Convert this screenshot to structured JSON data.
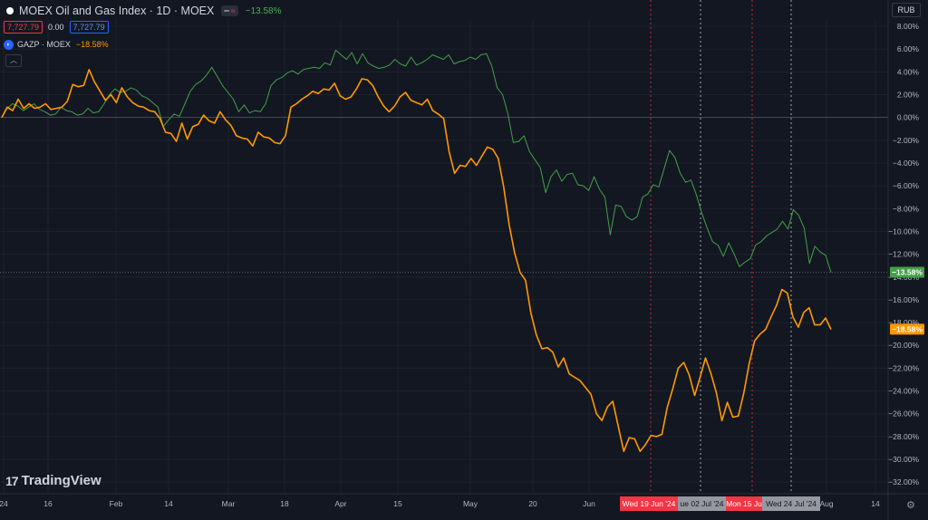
{
  "legend": {
    "title": "MOEX Oil and Gas Index · 1D · MOEX",
    "mini_label": "≈",
    "change": "−13.58%",
    "bid": "7,727.79",
    "spread": "0.00",
    "ask": "7,727.79",
    "compare_symbol": "GAZP · MOEX",
    "compare_change": "−18.58%",
    "collapse_icon": "chevron-up-icon"
  },
  "currency": "RUB",
  "logo_text": "TradingView",
  "colors": {
    "background": "#131722",
    "main_series": "#43a047",
    "compare_series": "#ff9800",
    "marker_red": "#f23645",
    "badge_gray": "#9598a1"
  },
  "chart_data": {
    "type": "line",
    "ylim": [
      -33,
      9
    ],
    "y_ticks": [
      "8.00%",
      "6.00%",
      "4.00%",
      "2.00%",
      "0.00%",
      "−2.00%",
      "−4.00%",
      "−6.00%",
      "−8.00%",
      "−10.00%",
      "−12.00%",
      "−14.00%",
      "−16.00%",
      "−18.00%",
      "−20.00%",
      "−22.00%",
      "−24.00%",
      "−26.00%",
      "−28.00%",
      "−30.00%",
      "−32.00%"
    ],
    "x_ticks": [
      "24",
      "16",
      "Feb",
      "14",
      "Mar",
      "18",
      "Apr",
      "15",
      "May",
      "20",
      "Jun",
      "Aug",
      "14"
    ],
    "last_value_labels": [
      {
        "value": -13.58,
        "text": "−13.58%",
        "color": "#43a047"
      },
      {
        "value": -18.58,
        "text": "−18.58%",
        "color": "#ff9800"
      }
    ],
    "date_badges": [
      {
        "text": "Wed 19 Jun '24",
        "color": "#f23645"
      },
      {
        "text": "ue 02 Jul '24",
        "color": "#9598a1"
      },
      {
        "text": "Mon 15 Ju",
        "color": "#f23645"
      },
      {
        "text": "Wed 24 Jul '24",
        "color": "#9598a1"
      }
    ],
    "series": [
      {
        "name": "MOEX Oil and Gas Index",
        "values": [
          0,
          0.8,
          1.2,
          1.0,
          0.6,
          0.9,
          1.2,
          0.7,
          0.5,
          0.2,
          0.3,
          0.9,
          0.6,
          0.5,
          0.2,
          0.3,
          0.8,
          0.4,
          0.5,
          1.2,
          2.0,
          2.5,
          2.2,
          2.3,
          2.6,
          2.4,
          1.9,
          1.7,
          1.3,
          0.9,
          -0.8,
          -0.2,
          0.3,
          0.1,
          1.2,
          2.3,
          2.9,
          3.2,
          3.7,
          4.4,
          3.6,
          2.8,
          2.2,
          1.6,
          0.5,
          1.1,
          0.4,
          0.6,
          0.5,
          1.2,
          2.8,
          3.3,
          3.5,
          3.9,
          4.1,
          3.8,
          4.2,
          4.3,
          4.4,
          4.3,
          4.8,
          4.6,
          5.9,
          5.5,
          5.1,
          5.7,
          4.7,
          5.6,
          4.8,
          4.5,
          4.3,
          4.4,
          4.6,
          5.1,
          4.7,
          4.5,
          5.3,
          4.6,
          4.8,
          5.1,
          5.5,
          5.3,
          5.1,
          5.5,
          4.7,
          4.9,
          5.0,
          5.3,
          5.1,
          5.5,
          5.6,
          4.5,
          2.6,
          2.0,
          0.3,
          -2.2,
          -2.1,
          -1.6,
          -3.0,
          -3.7,
          -4.4,
          -6.6,
          -5.2,
          -4.6,
          -5.6,
          -5.0,
          -4.9,
          -5.9,
          -6.0,
          -6.4,
          -5.2,
          -6.3,
          -7.0,
          -10.3,
          -7.7,
          -7.8,
          -8.7,
          -9.0,
          -8.7,
          -7.0,
          -6.7,
          -5.9,
          -6.1,
          -4.5,
          -2.9,
          -3.5,
          -4.9,
          -5.7,
          -5.5,
          -6.8,
          -8.4,
          -9.7,
          -10.9,
          -11.2,
          -12.2,
          -11.0,
          -12.0,
          -13.1,
          -12.7,
          -12.4,
          -11.2,
          -10.9,
          -10.4,
          -10.1,
          -9.8,
          -9.1,
          -9.8,
          -8.1,
          -8.6,
          -9.7,
          -12.8,
          -11.3,
          -11.8,
          -12.1,
          -13.6
        ]
      },
      {
        "name": "GAZP",
        "values": [
          0,
          0.9,
          0.6,
          1.6,
          0.8,
          1.2,
          0.8,
          0.9,
          1.2,
          0.7,
          0.8,
          0.9,
          1.4,
          2.9,
          2.7,
          2.8,
          4.2,
          3.1,
          2.3,
          1.5,
          2.0,
          1.3,
          2.6,
          1.8,
          1.3,
          1.0,
          0.9,
          0.6,
          0.5,
          -0.1,
          -1.3,
          -1.4,
          -2.1,
          -0.5,
          -1.9,
          -0.8,
          -0.6,
          0.2,
          -0.3,
          -0.5,
          0.5,
          -0.2,
          -0.7,
          -1.6,
          -1.8,
          -1.9,
          -2.5,
          -1.3,
          -1.7,
          -1.8,
          -2.2,
          -2.3,
          -1.6,
          0.9,
          1.2,
          1.6,
          1.9,
          2.3,
          2.1,
          2.5,
          2.4,
          3.0,
          1.9,
          1.6,
          1.8,
          2.5,
          3.4,
          3.3,
          2.8,
          1.8,
          1.0,
          0.5,
          1.0,
          1.8,
          2.2,
          1.5,
          1.3,
          1.1,
          1.6,
          0.6,
          0.3,
          -0.1,
          -3.0,
          -4.9,
          -4.2,
          -4.3,
          -3.6,
          -4.2,
          -3.4,
          -2.6,
          -2.8,
          -3.6,
          -6.1,
          -9.4,
          -11.9,
          -13.6,
          -14.3,
          -17.2,
          -19.1,
          -20.3,
          -20.2,
          -20.6,
          -21.9,
          -21.1,
          -22.5,
          -22.8,
          -23.1,
          -23.7,
          -24.3,
          -26.0,
          -26.6,
          -25.4,
          -24.9,
          -27.1,
          -29.3,
          -28.1,
          -28.2,
          -29.3,
          -28.7,
          -27.9,
          -28.0,
          -27.8,
          -25.4,
          -23.8,
          -22.0,
          -21.5,
          -22.6,
          -24.4,
          -22.8,
          -21.1,
          -22.5,
          -24.2,
          -26.6,
          -25.0,
          -26.3,
          -26.2,
          -24.2,
          -21.6,
          -19.6,
          -19.0,
          -18.6,
          -17.5,
          -16.5,
          -15.1,
          -15.4,
          -17.5,
          -18.4,
          -17.1,
          -16.7,
          -18.2,
          -18.2,
          -17.6,
          -18.6
        ]
      }
    ]
  }
}
